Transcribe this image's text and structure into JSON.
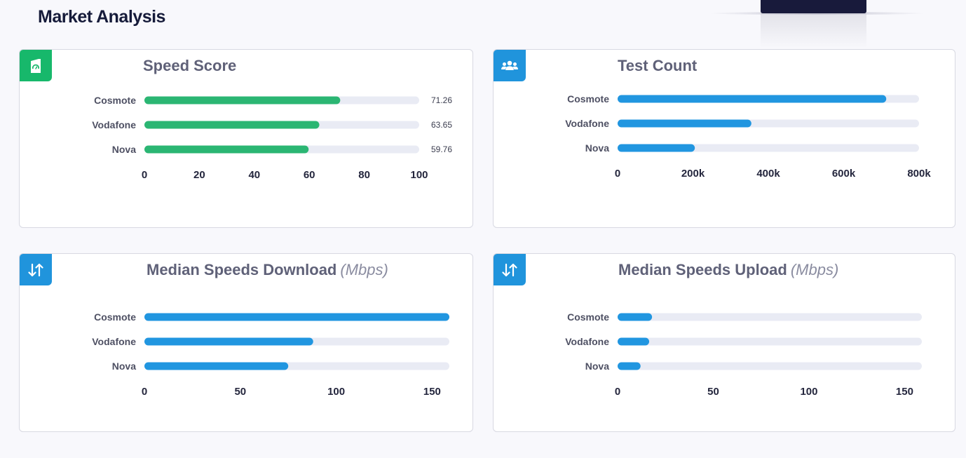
{
  "page": {
    "title": "Market Analysis"
  },
  "colors": {
    "green": "#2bb673",
    "blue": "#2196e0",
    "track": "#e9ebf4"
  },
  "cards": [
    {
      "title": "Speed Score",
      "unit": "",
      "icon": "speedometer-icon"
    },
    {
      "title": "Test Count",
      "unit": "",
      "icon": "users-icon"
    },
    {
      "title": "Median Speeds Download",
      "unit": "(Mbps)",
      "icon": "arrows-up-down-icon"
    },
    {
      "title": "Median Speeds Upload",
      "unit": "(Mbps)",
      "icon": "arrows-up-down-icon"
    }
  ],
  "chart_data": [
    {
      "type": "bar",
      "orientation": "horizontal",
      "title": "Speed Score",
      "categories": [
        "Cosmote",
        "Vodafone",
        "Nova"
      ],
      "values": [
        71.26,
        63.65,
        59.76
      ],
      "value_labels": [
        "71.26",
        "63.65",
        "59.76"
      ],
      "xlim": [
        0,
        100
      ],
      "ticks": [
        0,
        20,
        40,
        60,
        80,
        100
      ],
      "tick_labels": [
        "0",
        "20",
        "40",
        "60",
        "80",
        "100"
      ],
      "color": "#2bb673"
    },
    {
      "type": "bar",
      "orientation": "horizontal",
      "title": "Test Count",
      "categories": [
        "Cosmote",
        "Vodafone",
        "Nova"
      ],
      "values": [
        713000,
        355000,
        205000
      ],
      "xlim": [
        0,
        800000
      ],
      "ticks": [
        0,
        200000,
        400000,
        600000,
        800000
      ],
      "tick_labels": [
        "0",
        "200k",
        "400k",
        "600k",
        "800k"
      ],
      "color": "#2196e0"
    },
    {
      "type": "bar",
      "orientation": "horizontal",
      "title": "Median Speeds Download (Mbps)",
      "categories": [
        "Cosmote",
        "Vodafone",
        "Nova"
      ],
      "values": [
        159,
        88,
        75
      ],
      "xlim": [
        0,
        159
      ],
      "ticks": [
        0,
        50,
        100,
        150
      ],
      "tick_labels": [
        "0",
        "50",
        "100",
        "150"
      ],
      "color": "#2196e0"
    },
    {
      "type": "bar",
      "orientation": "horizontal",
      "title": "Median Speeds Upload (Mbps)",
      "categories": [
        "Cosmote",
        "Vodafone",
        "Nova"
      ],
      "values": [
        18,
        16.5,
        12
      ],
      "xlim": [
        0,
        159
      ],
      "ticks": [
        0,
        50,
        100,
        150
      ],
      "tick_labels": [
        "0",
        "50",
        "100",
        "150"
      ],
      "color": "#2196e0"
    }
  ]
}
